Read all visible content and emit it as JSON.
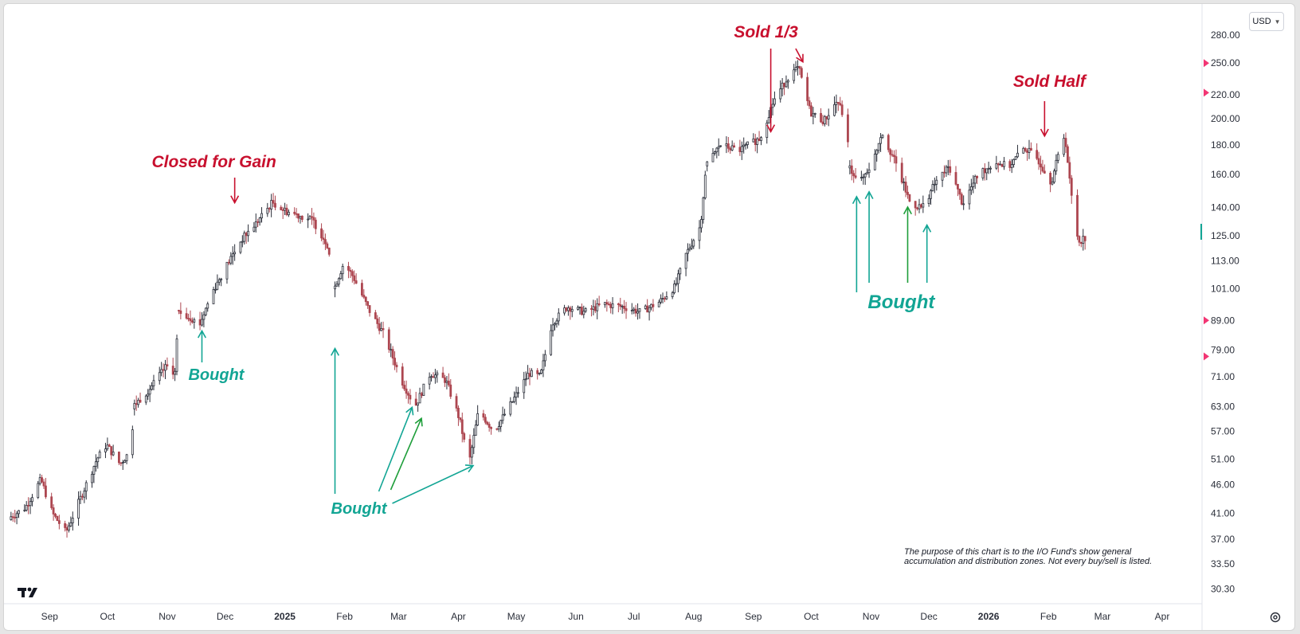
{
  "currency_selector": {
    "label": "USD"
  },
  "colors": {
    "background": "#ffffff",
    "up_candle": "#2a2e39",
    "down_candle": "#ad4650",
    "sell_annotation": "#c8102e",
    "buy_annotation": "#12a594",
    "buy_arrow_dark": "#1e9e3a",
    "alert_marker": "#f23674"
  },
  "chart_data": {
    "type": "candlestick",
    "title": "",
    "xlabel": "",
    "ylabel": "",
    "y_scale": "log",
    "ylim": [
      29,
      305
    ],
    "x_range": [
      "2024-08-10",
      "2026-04-20"
    ],
    "grid": false,
    "y_ticks": [
      30.3,
      33.5,
      37,
      41,
      46,
      51,
      57,
      63,
      71,
      79,
      89,
      101,
      113,
      125,
      140,
      160,
      180,
      200,
      220,
      250,
      280
    ],
    "y_tick_labels": [
      "30.30",
      "33.50",
      "37.00",
      "41.00",
      "46.00",
      "51.00",
      "57.00",
      "63.00",
      "71.00",
      "79.00",
      "89.00",
      "101.00",
      "113.00",
      "125.00",
      "140.00",
      "160.00",
      "180.00",
      "200.00",
      "220.00",
      "250.00",
      "280.00"
    ],
    "x_ticks": [
      {
        "label": "Sep",
        "date": "2024-09-01",
        "bold": false
      },
      {
        "label": "Oct",
        "date": "2024-10-01",
        "bold": false
      },
      {
        "label": "Nov",
        "date": "2024-11-01",
        "bold": false
      },
      {
        "label": "Dec",
        "date": "2024-12-01",
        "bold": false
      },
      {
        "label": "2025",
        "date": "2025-01-01",
        "bold": true
      },
      {
        "label": "Feb",
        "date": "2025-02-01",
        "bold": false
      },
      {
        "label": "Mar",
        "date": "2025-03-01",
        "bold": false
      },
      {
        "label": "Apr",
        "date": "2025-04-01",
        "bold": false
      },
      {
        "label": "May",
        "date": "2025-05-01",
        "bold": false
      },
      {
        "label": "Jun",
        "date": "2025-06-01",
        "bold": false
      },
      {
        "label": "Jul",
        "date": "2025-07-01",
        "bold": false
      },
      {
        "label": "Aug",
        "date": "2025-08-01",
        "bold": false
      },
      {
        "label": "Sep",
        "date": "2025-09-01",
        "bold": false
      },
      {
        "label": "Oct",
        "date": "2025-10-01",
        "bold": false
      },
      {
        "label": "Nov",
        "date": "2025-11-01",
        "bold": false
      },
      {
        "label": "Dec",
        "date": "2025-12-01",
        "bold": false
      },
      {
        "label": "2026",
        "date": "2026-01-01",
        "bold": true
      },
      {
        "label": "Feb",
        "date": "2026-02-01",
        "bold": false
      },
      {
        "label": "Mar",
        "date": "2026-03-01",
        "bold": false
      },
      {
        "label": "Apr",
        "date": "2026-04-01",
        "bold": false
      }
    ],
    "price_path": [
      [
        "2024-08-10",
        40
      ],
      [
        "2024-08-20",
        42
      ],
      [
        "2024-08-28",
        47
      ],
      [
        "2024-09-03",
        41
      ],
      [
        "2024-09-10",
        38
      ],
      [
        "2024-09-18",
        44
      ],
      [
        "2024-09-26",
        51
      ],
      [
        "2024-10-01",
        54
      ],
      [
        "2024-10-08",
        50
      ],
      [
        "2024-10-14",
        53
      ],
      [
        "2024-10-15",
        63
      ],
      [
        "2024-10-24",
        68
      ],
      [
        "2024-11-01",
        74
      ],
      [
        "2024-11-06",
        72
      ],
      [
        "2024-11-07",
        92
      ],
      [
        "2024-11-14",
        90
      ],
      [
        "2024-11-18",
        87
      ],
      [
        "2024-11-25",
        100
      ],
      [
        "2024-12-03",
        112
      ],
      [
        "2024-12-10",
        123
      ],
      [
        "2024-12-18",
        132
      ],
      [
        "2024-12-26",
        143
      ],
      [
        "2025-01-02",
        138
      ],
      [
        "2025-01-08",
        136
      ],
      [
        "2025-01-16",
        133
      ],
      [
        "2025-01-24",
        120
      ],
      [
        "2025-01-27",
        101
      ],
      [
        "2025-02-01",
        112
      ],
      [
        "2025-02-06",
        106
      ],
      [
        "2025-02-14",
        93
      ],
      [
        "2025-02-22",
        84
      ],
      [
        "2025-03-03",
        70
      ],
      [
        "2025-03-10",
        63
      ],
      [
        "2025-03-18",
        72
      ],
      [
        "2025-03-26",
        70
      ],
      [
        "2025-04-02",
        60
      ],
      [
        "2025-04-07",
        50
      ],
      [
        "2025-04-12",
        62
      ],
      [
        "2025-04-20",
        57
      ],
      [
        "2025-04-28",
        63
      ],
      [
        "2025-05-08",
        72
      ],
      [
        "2025-05-14",
        71
      ],
      [
        "2025-05-20",
        88
      ],
      [
        "2025-05-28",
        94
      ],
      [
        "2025-06-06",
        92
      ],
      [
        "2025-06-16",
        95
      ],
      [
        "2025-06-26",
        94
      ],
      [
        "2025-07-05",
        92
      ],
      [
        "2025-07-15",
        96
      ],
      [
        "2025-07-23",
        102
      ],
      [
        "2025-07-28",
        115
      ],
      [
        "2025-08-05",
        130
      ],
      [
        "2025-08-08",
        165
      ],
      [
        "2025-08-15",
        180
      ],
      [
        "2025-08-25",
        176
      ],
      [
        "2025-09-05",
        185
      ],
      [
        "2025-09-12",
        215
      ],
      [
        "2025-09-20",
        238
      ],
      [
        "2025-09-25",
        245
      ],
      [
        "2025-10-01",
        205
      ],
      [
        "2025-10-08",
        198
      ],
      [
        "2025-10-15",
        215
      ],
      [
        "2025-10-20",
        195
      ],
      [
        "2025-10-21",
        165
      ],
      [
        "2025-10-27",
        155
      ],
      [
        "2025-11-03",
        170
      ],
      [
        "2025-11-07",
        190
      ],
      [
        "2025-11-14",
        168
      ],
      [
        "2025-11-22",
        142
      ],
      [
        "2025-11-28",
        140
      ],
      [
        "2025-12-05",
        155
      ],
      [
        "2025-12-12",
        165
      ],
      [
        "2025-12-19",
        142
      ],
      [
        "2025-12-27",
        160
      ],
      [
        "2026-01-05",
        168
      ],
      [
        "2026-01-12",
        165
      ],
      [
        "2026-01-20",
        178
      ],
      [
        "2026-01-27",
        170
      ],
      [
        "2026-02-03",
        155
      ],
      [
        "2026-02-08",
        180
      ],
      [
        "2026-02-10",
        188
      ],
      [
        "2026-02-13",
        150
      ],
      [
        "2026-02-17",
        122
      ],
      [
        "2026-02-20",
        124
      ]
    ],
    "gaps": [
      "2024-10-15",
      "2024-11-07",
      "2025-01-27",
      "2025-08-08",
      "2025-10-21"
    ]
  },
  "annotations": {
    "sells": [
      {
        "label": "Closed for Gain",
        "date": "2024-12-06",
        "price": 140
      },
      {
        "label": "Sold 1/3",
        "date": "2025-09-10",
        "price": 185
      },
      {
        "label": "Sold Half",
        "date": "2026-01-30",
        "price": 183
      }
    ],
    "extra_sell_arrow": {
      "date": "2025-09-25",
      "price": 248
    },
    "buys": [
      {
        "label": "Bought",
        "date": "2024-11-19",
        "price": 87
      },
      {
        "label": "Bought",
        "date": "2025-01-27",
        "price": 80
      },
      {
        "label": "Bought",
        "date": "2025-10-27",
        "price": 150
      }
    ],
    "buy_group_arrows": [
      {
        "date": "2025-03-08",
        "price": 64
      },
      {
        "date": "2025-03-12",
        "price": 62
      },
      {
        "date": "2025-04-07",
        "price": 50
      }
    ],
    "buy_extra_arrows": [
      {
        "date": "2025-10-31",
        "price": 152
      },
      {
        "date": "2025-11-20",
        "price": 143
      },
      {
        "date": "2025-11-30",
        "price": 133
      }
    ],
    "right_markers": [
      250,
      222,
      89,
      77
    ],
    "disclaimer_line1": "The purpose of this chart is to the I/O Fund's show general",
    "disclaimer_line2": "accumulation and distribution zones. Not every buy/sell is listed."
  }
}
